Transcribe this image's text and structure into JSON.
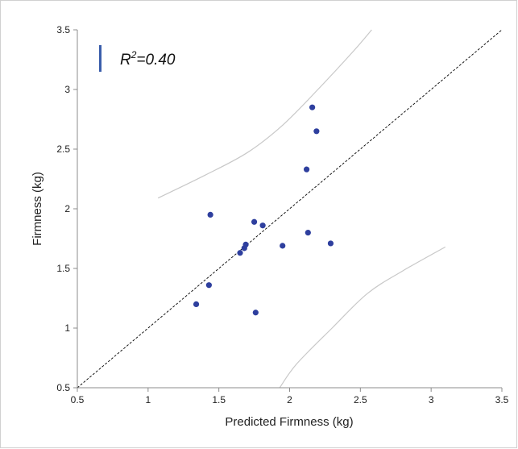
{
  "chart_data": {
    "type": "scatter",
    "title": "",
    "xlabel": "Predicted Firmness (kg)",
    "ylabel": "Firmness (kg)",
    "xlim": [
      0.5,
      3.5
    ],
    "ylim": [
      0.5,
      3.5
    ],
    "x_ticks": [
      "0.5",
      "1",
      "1.5",
      "2",
      "2.5",
      "3",
      "3.5"
    ],
    "y_ticks": [
      "0.5",
      "1",
      "1.5",
      "2",
      "2.5",
      "3",
      "3.5"
    ],
    "grid": false,
    "annotation": {
      "prefix": "R",
      "superscript": "2",
      "suffix": "=0.40"
    },
    "series": [
      {
        "color": "#2e3f9e",
        "points": [
          {
            "x": 1.34,
            "y": 1.2
          },
          {
            "x": 1.43,
            "y": 1.36
          },
          {
            "x": 1.44,
            "y": 1.95
          },
          {
            "x": 1.65,
            "y": 1.63
          },
          {
            "x": 1.68,
            "y": 1.67
          },
          {
            "x": 1.69,
            "y": 1.7
          },
          {
            "x": 1.75,
            "y": 1.89
          },
          {
            "x": 1.76,
            "y": 1.13
          },
          {
            "x": 1.81,
            "y": 1.86
          },
          {
            "x": 1.95,
            "y": 1.69
          },
          {
            "x": 2.12,
            "y": 2.33
          },
          {
            "x": 2.13,
            "y": 1.8
          },
          {
            "x": 2.16,
            "y": 2.85
          },
          {
            "x": 2.19,
            "y": 2.65
          },
          {
            "x": 2.29,
            "y": 1.71
          }
        ]
      }
    ],
    "reference_line": {
      "style": "dashed",
      "color": "#000000",
      "points": [
        {
          "x": 0.5,
          "y": 0.5
        },
        {
          "x": 3.5,
          "y": 3.5
        }
      ]
    },
    "bounds": [
      {
        "color": "#c8c8c8",
        "points": [
          {
            "x": 1.07,
            "y": 2.09
          },
          {
            "x": 1.4,
            "y": 2.28
          },
          {
            "x": 1.7,
            "y": 2.47
          },
          {
            "x": 1.95,
            "y": 2.7
          },
          {
            "x": 2.2,
            "y": 3.0
          },
          {
            "x": 2.45,
            "y": 3.32
          },
          {
            "x": 2.58,
            "y": 3.5
          }
        ]
      },
      {
        "color": "#c8c8c8",
        "points": [
          {
            "x": 1.93,
            "y": 0.5
          },
          {
            "x": 2.05,
            "y": 0.7
          },
          {
            "x": 2.3,
            "y": 1.0
          },
          {
            "x": 2.55,
            "y": 1.29
          },
          {
            "x": 2.8,
            "y": 1.48
          },
          {
            "x": 3.1,
            "y": 1.68
          }
        ]
      }
    ],
    "legend_marker": {
      "color": "#3b5eab"
    }
  }
}
